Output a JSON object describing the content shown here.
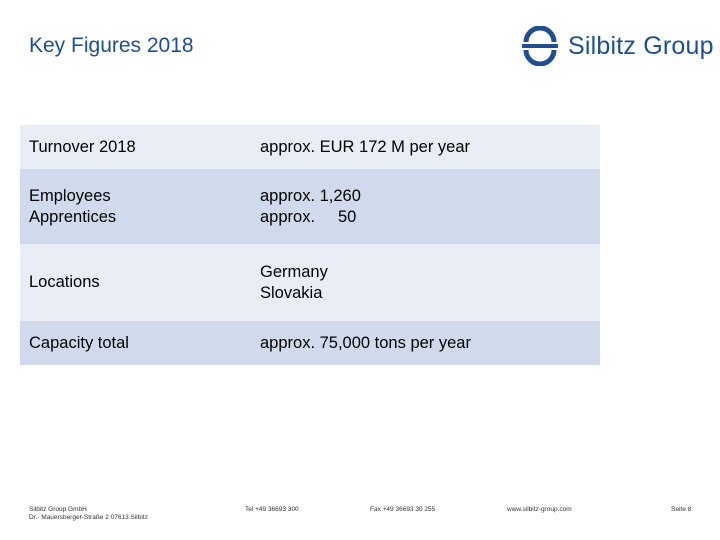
{
  "slide": {
    "title": "Key Figures 2018"
  },
  "logo": {
    "text": "Silbitz Group",
    "icon": "silbitz-logo-icon",
    "color": "#1f4f91"
  },
  "table": {
    "rows": [
      {
        "label_lines": [
          "Turnover 2018"
        ],
        "value_lines": [
          "approx. EUR 172 M per year"
        ]
      },
      {
        "label_lines": [
          "Employees",
          "Apprentices"
        ],
        "value_lines": [
          "approx. 1,260",
          "approx.     50"
        ]
      },
      {
        "label_lines": [
          "Locations"
        ],
        "value_lines": [
          "Germany",
          "Slovakia"
        ]
      },
      {
        "label_lines": [
          "Capacity total"
        ],
        "value_lines": [
          "approx. 75,000 tons per year"
        ]
      }
    ]
  },
  "footer": {
    "company_line1": "Silbitz Group GmbH",
    "company_line2": "Dr.- Mauersberger-Straße 2 07613 Silbitz",
    "tel": "Tel +49 36693 300",
    "fax": "Fax +49 36693 30 255",
    "web": "www.silbitz-group.com",
    "page": "Seite 8"
  }
}
